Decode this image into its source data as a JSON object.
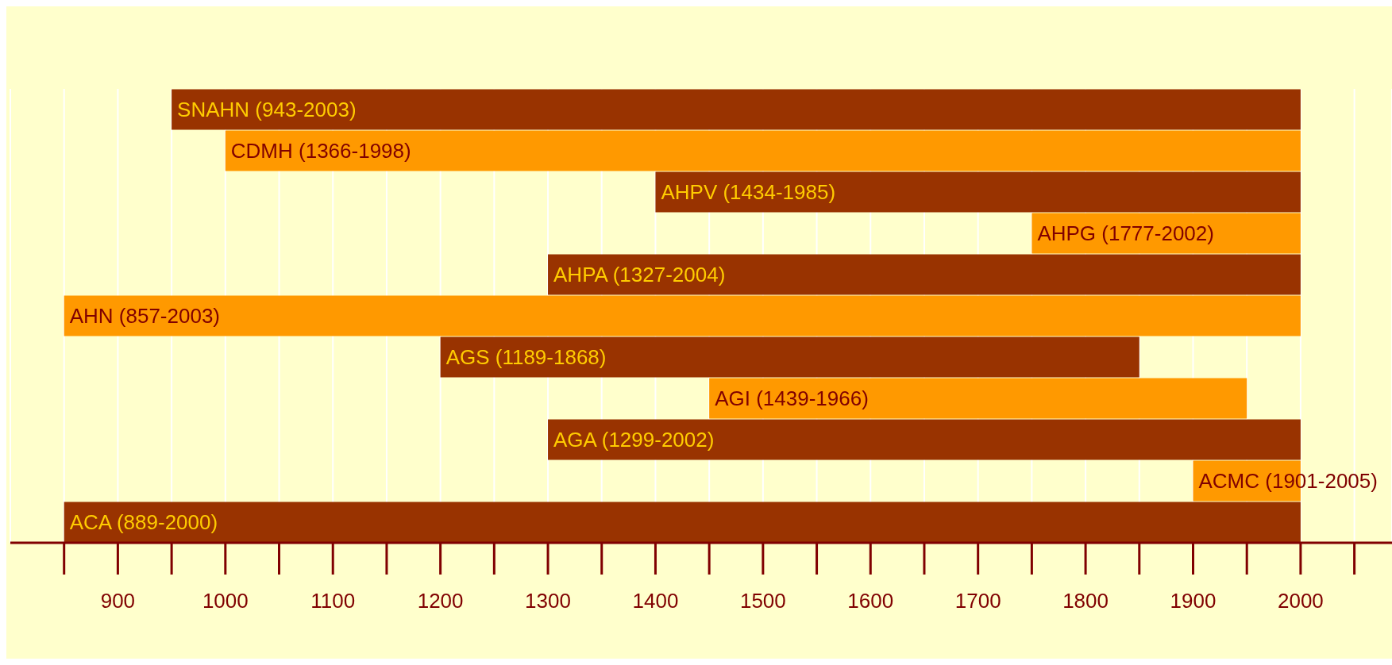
{
  "chart_data": {
    "type": "bar",
    "orientation": "horizontal",
    "categories": [
      "SNAHN (943-2003)",
      "CDMH (1366-1998)",
      "AHPV (1434-1985)",
      "AHPG (1777-2002)",
      "AHPA (1327-2004)",
      "AHN (857-2003)",
      "AGS (1189-1868)",
      "AGI (1439-1966)",
      "AGA (1299-2002)",
      "ACMC (1901-2005)",
      "ACA (889-2000)"
    ],
    "base": [
      950,
      1000,
      1400,
      1750,
      1300,
      850,
      1200,
      1450,
      1300,
      1900,
      850
    ],
    "values": [
      1050,
      1000,
      600,
      250,
      700,
      1150,
      650,
      500,
      700,
      100,
      1150
    ],
    "colors": [
      "#993300",
      "#ff9900",
      "#993300",
      "#ff9900",
      "#993300",
      "#ff9900",
      "#993300",
      "#ff9900",
      "#993300",
      "#ff9900",
      "#993300"
    ],
    "xlim": [
      800,
      2085
    ],
    "xticks": [
      {
        "value": 850,
        "label": null
      },
      900,
      {
        "value": 950,
        "label": null
      },
      1000,
      {
        "value": 1050,
        "label": null
      },
      1100,
      {
        "value": 1150,
        "label": null
      },
      1200,
      {
        "value": 1250,
        "label": null
      },
      1300,
      {
        "value": 1350,
        "label": null
      },
      1400,
      {
        "value": 1450,
        "label": null
      },
      1500,
      {
        "value": 1550,
        "label": null
      },
      1600,
      {
        "value": 1650,
        "label": null
      },
      1700,
      {
        "value": 1750,
        "label": null
      },
      1800,
      {
        "value": 1850,
        "label": null
      },
      1900,
      {
        "value": 1950,
        "label": null
      },
      2000,
      {
        "value": 2050,
        "label": null
      }
    ],
    "grid": "x",
    "tick_labels": "x"
  }
}
